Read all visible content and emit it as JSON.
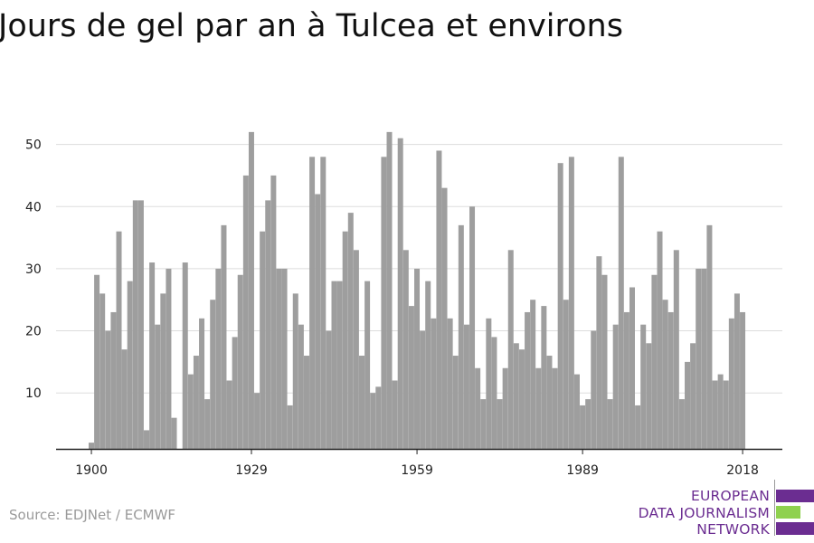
{
  "colors": {
    "bar": "#9e9e9e",
    "grid": "#dddddd",
    "axis": "#222222",
    "brand_purple": "#6b2d91",
    "brand_green": "#8fd14f",
    "source_text": "#9a9a9a"
  },
  "source": "Source: EDJNet / ECMWF",
  "logo": {
    "lines": [
      "EUROPEAN",
      "DATA JOURNALISM",
      "NETWORK"
    ]
  },
  "chart_data": {
    "type": "bar",
    "title": "Jours de gel par an à Tulcea et environs",
    "xlabel": "",
    "ylabel": "",
    "x_start": 1900,
    "x_end": 2018,
    "x_ticks": [
      1900,
      1929,
      1959,
      1989,
      2018
    ],
    "y_ticks": [
      10,
      20,
      30,
      40,
      50
    ],
    "ylim": [
      1,
      53
    ],
    "grid": true,
    "legend": "none",
    "values": [
      2,
      29,
      26,
      20,
      23,
      36,
      17,
      28,
      41,
      41,
      4,
      31,
      21,
      26,
      30,
      6,
      0,
      31,
      13,
      16,
      22,
      9,
      25,
      30,
      37,
      12,
      19,
      29,
      45,
      52,
      10,
      36,
      41,
      45,
      30,
      30,
      8,
      26,
      21,
      16,
      48,
      42,
      48,
      20,
      28,
      28,
      36,
      39,
      33,
      16,
      28,
      10,
      11,
      48,
      52,
      12,
      51,
      33,
      24,
      30,
      20,
      28,
      22,
      49,
      43,
      22,
      16,
      37,
      21,
      40,
      14,
      9,
      22,
      19,
      9,
      14,
      33,
      18,
      17,
      23,
      25,
      14,
      24,
      16,
      14,
      47,
      25,
      48,
      13,
      8,
      9,
      20,
      32,
      29,
      9,
      21,
      48,
      23,
      27,
      8,
      21,
      18,
      29,
      36,
      25,
      23,
      33,
      9,
      15,
      18,
      30,
      30,
      37,
      12,
      13,
      12,
      22,
      26,
      23
    ]
  }
}
